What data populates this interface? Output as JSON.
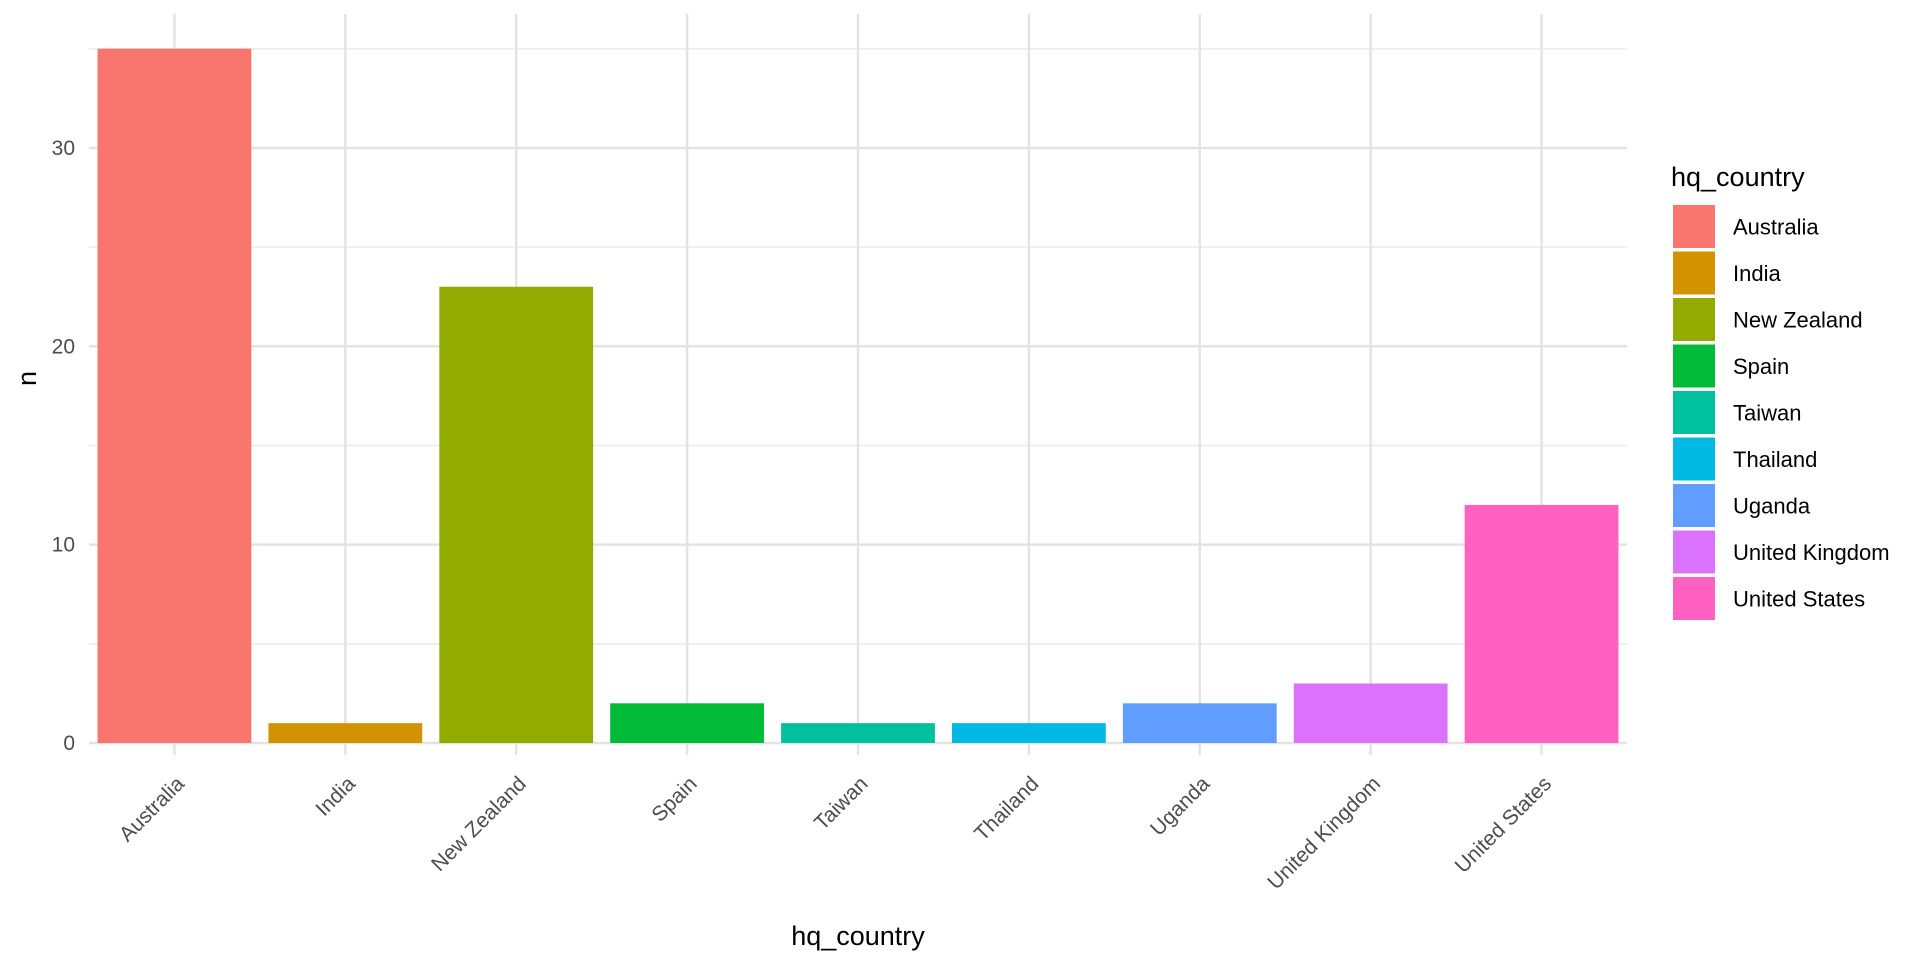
{
  "chart_data": {
    "type": "bar",
    "categories": [
      "Australia",
      "India",
      "New Zealand",
      "Spain",
      "Taiwan",
      "Thailand",
      "Uganda",
      "United Kingdom",
      "United States"
    ],
    "values": [
      35,
      1,
      23,
      2,
      1,
      1,
      2,
      3,
      12
    ],
    "colors": [
      "#F8766D",
      "#D39200",
      "#93AA00",
      "#00BA38",
      "#00C19F",
      "#00B9E3",
      "#619CFF",
      "#DB72FB",
      "#FF61C3"
    ],
    "xlabel": "hq_country",
    "ylabel": "n",
    "ylim": [
      0,
      36.75
    ],
    "yticks": [
      0,
      10,
      20,
      30
    ],
    "grid": true,
    "legend": {
      "title": "hq_country",
      "position": "right"
    }
  }
}
